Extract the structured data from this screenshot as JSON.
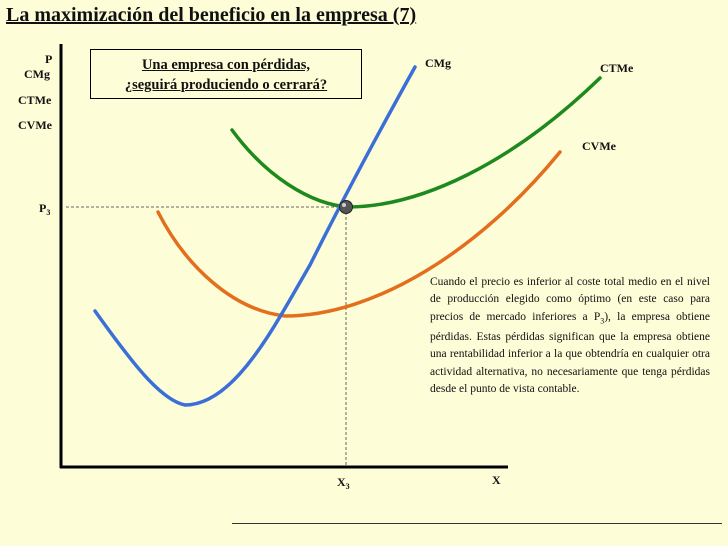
{
  "title": "La maximización del beneficio en la empresa (7)",
  "axes": {
    "y_axis_label": "P",
    "y_axis_legend": [
      "CMg",
      "CTMe",
      "CVMe"
    ],
    "x_axis_label": "X",
    "x_mark_label": "X",
    "x_mark_sub": "3",
    "price_label": "P",
    "price_sub": "3"
  },
  "curves": {
    "cmg": {
      "label": "CMg",
      "color": "#3b6fd8"
    },
    "ctme": {
      "label": "CTMe",
      "color": "#1e8a1e"
    },
    "cvme": {
      "label": "CVMe",
      "color": "#e36f1e"
    }
  },
  "equilibrium_point": {
    "color": "#555555"
  },
  "question_box": {
    "line1": "Una empresa con pérdidas,",
    "line2": "¿seguirá produciendo o cerrará?"
  },
  "explanation": {
    "part1": "Cuando el precio es inferior al coste total medio en el nivel de producción elegido como óptimo (en este caso para precios de mercado inferiores a P",
    "sub": "3",
    "part2": "), la empresa obtiene pérdidas. Estas pérdidas significan que la empresa obtiene una rentabilidad inferior a la que obtendría en cualquier otra actividad alternativa, no necesariamente que tenga pérdidas desde el punto de vista contable."
  }
}
